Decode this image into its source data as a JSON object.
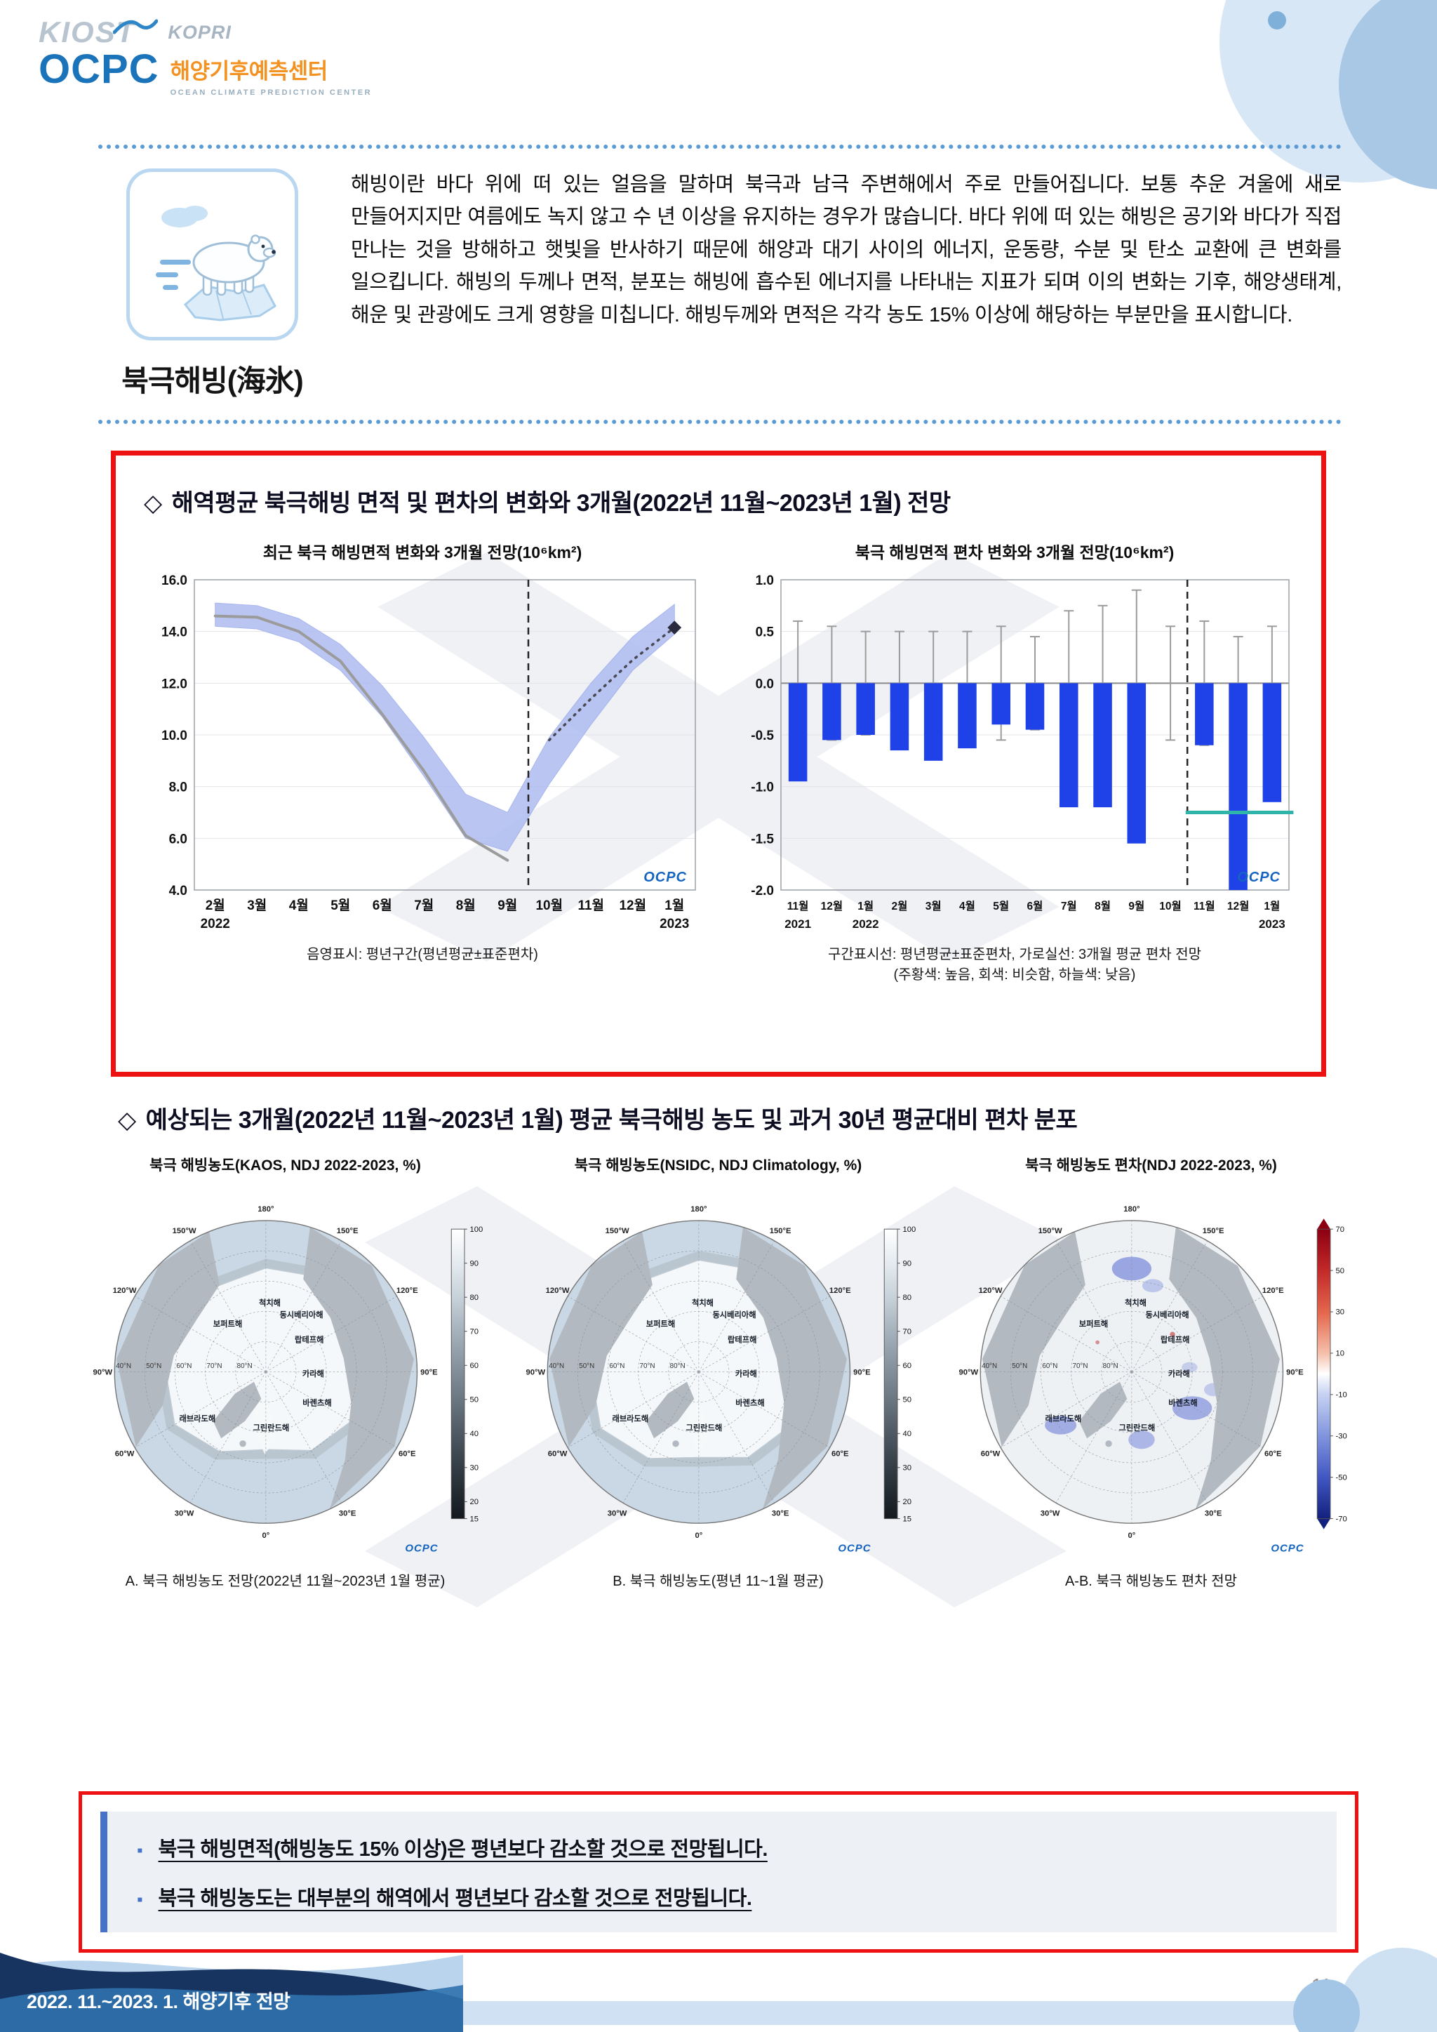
{
  "branding": {
    "kiost": "KIOST",
    "kopri": "KOPRI",
    "ocpc": "OCPC",
    "ocpc_korean": "해양기후예측센터",
    "ocpc_english": "OCEAN CLIMATE PREDICTION CENTER",
    "ocpc_mark": "OCPC"
  },
  "intro": {
    "label": "북극해빙(海氷)",
    "text": "해빙이란 바다 위에 떠 있는 얼음을 말하며 북극과 남극 주변해에서 주로 만들어집니다. 보통 추운 겨울에 새로 만들어지지만 여름에도 녹지 않고 수 년 이상을 유지하는 경우가 많습니다. 바다 위에 떠 있는 해빙은 공기와 바다가 직접 만나는 것을 방해하고 햇빛을 반사하기 때문에 해양과 대기 사이의 에너지, 운동량, 수분 및 탄소 교환에 큰 변화를 일으킵니다. 해빙의 두께나 면적, 분포는 해빙에 흡수된 에너지를 나타내는 지표가 되며 이의 변화는 기후, 해양생태계, 해운 및 관광에도 크게 영향을 미칩니다. 해빙두께와 면적은 각각 농도 15% 이상에 해당하는 부분만을 표시합니다."
  },
  "section1": {
    "diamond": "◇",
    "title": "해역평균 북극해빙 면적 및 편차의 변화와 3개월(2022년 11월~2023년 1월) 전망",
    "caption_left": "음영표시: 평년구간(평년평균±표준편차)",
    "caption_right_1": "구간표시선: 평년평균±표준편차, 가로실선: 3개월 평균 편차 전망",
    "caption_right_2": "(주황색: 높음, 회색: 비슷함, 하늘색: 낮음)"
  },
  "section2": {
    "diamond": "◇",
    "title": "예상되는 3개월(2022년 11월~2023년 1월) 평균 북극해빙 농도 및 과거 30년 평균대비 편차 분포"
  },
  "chart_data": [
    {
      "type": "line",
      "title": "최근 북극 해빙면적 변화와 3개월 전망(10⁶km²)",
      "categories": [
        "2월",
        "3월",
        "4월",
        "5월",
        "6월",
        "7월",
        "8월",
        "9월",
        "10월",
        "11월",
        "12월",
        "1월"
      ],
      "x_year_labels": [
        {
          "index": 0,
          "label": "2022"
        },
        {
          "index": 11,
          "label": "2023"
        }
      ],
      "ylim": [
        4.0,
        16.0
      ],
      "yticks": [
        16.0,
        14.0,
        12.0,
        10.0,
        8.0,
        6.0,
        4.0
      ],
      "series": [
        {
          "name": "관측 해빙면적",
          "style": "solid-gray",
          "values": [
            14.6,
            14.55,
            14.0,
            12.85,
            10.8,
            8.6,
            6.1,
            5.15,
            null,
            null,
            null,
            null
          ]
        },
        {
          "name": "3개월 전망",
          "style": "dotted",
          "values": [
            null,
            null,
            null,
            null,
            null,
            null,
            null,
            null,
            9.8,
            11.4,
            12.9,
            14.15
          ]
        },
        {
          "name": "평년구간 상한",
          "style": "band-upper",
          "values": [
            15.1,
            15.0,
            14.5,
            13.5,
            11.9,
            9.9,
            7.7,
            7.0,
            9.9,
            12.0,
            13.8,
            15.05
          ]
        },
        {
          "name": "평년구간 하한",
          "style": "band-lower",
          "values": [
            14.2,
            14.1,
            13.6,
            12.5,
            10.7,
            8.4,
            6.0,
            5.5,
            8.1,
            10.4,
            12.5,
            13.9
          ]
        }
      ],
      "forecast_divider_after": "9월"
    },
    {
      "type": "bar",
      "title": "북극 해빙면적 편차 변화와 3개월 전망(10⁶km²)",
      "categories": [
        "11월",
        "12월",
        "1월",
        "2월",
        "3월",
        "4월",
        "5월",
        "6월",
        "7월",
        "8월",
        "9월",
        "10월",
        "11월",
        "12월",
        "1월"
      ],
      "x_year_labels": [
        {
          "index": 0,
          "label": "2021"
        },
        {
          "index": 2,
          "label": "2022"
        },
        {
          "index": 14,
          "label": "2023"
        }
      ],
      "ylim": [
        -2.0,
        1.0
      ],
      "yticks": [
        1.0,
        0.5,
        0.0,
        -0.5,
        -1.0,
        -1.5,
        -2.0
      ],
      "values": [
        -0.95,
        -0.55,
        -0.5,
        -0.65,
        -0.75,
        -0.63,
        -0.4,
        -0.45,
        -1.2,
        -1.2,
        -1.55,
        null,
        -0.6,
        -2.0,
        -1.15
      ],
      "std_whiskers": [
        0.6,
        0.55,
        0.5,
        0.5,
        0.5,
        0.5,
        0.55,
        0.45,
        0.7,
        0.75,
        0.9,
        0.55,
        0.6,
        0.45,
        0.55
      ],
      "forecast_divider_after": "10월",
      "forecast_mean_line": {
        "value": -1.25,
        "meaning": "하늘색: 낮음",
        "from_index": 12,
        "to_index": 14
      }
    }
  ],
  "maps": {
    "sea_labels": [
      "척치해",
      "동시베리아해",
      "보퍼트해",
      "랍테프해",
      "카라해",
      "바렌츠해",
      "그린란드해",
      "래브라도해"
    ],
    "lon_labels": [
      "180°",
      "150°W",
      "150°E",
      "120°W",
      "120°E",
      "90°W",
      "90°E",
      "60°W",
      "60°E",
      "30°W",
      "30°E",
      "0°"
    ],
    "lat_labels": [
      "40°N",
      "50°N",
      "60°N",
      "70°N",
      "80°N"
    ],
    "panels": [
      {
        "title": "북극 해빙농도(KAOS, NDJ 2022-2023, %)",
        "caption": "A. 북극 해빙농도 전망(2022년 11월~2023년 1월 평균)",
        "colorbar": "concentration"
      },
      {
        "title": "북극 해빙농도(NSIDC, NDJ Climatology, %)",
        "caption": "B. 북극 해빙농도(평년 11~1월 평균)",
        "colorbar": "concentration"
      },
      {
        "title": "북극 해빙농도 편차(NDJ 2022-2023, %)",
        "caption": "A-B. 북극 해빙농도 편차 전망",
        "colorbar": "anomaly"
      }
    ],
    "colorbars": {
      "concentration": {
        "min": 15,
        "max": 100,
        "ticks": [
          100,
          90,
          80,
          70,
          60,
          50,
          40,
          30,
          20,
          15
        ]
      },
      "anomaly": {
        "min": -70,
        "max": 70,
        "ticks": [
          70,
          50,
          30,
          10,
          -10,
          -30,
          -50,
          -70
        ]
      }
    }
  },
  "summary": {
    "bullets": [
      "북극 해빙면적(해빙농도 15% 이상)은 평년보다 감소할 것으로 전망됩니다.",
      "북극 해빙농도는 대부분의 해역에서 평년보다 감소할 것으로 전망됩니다."
    ]
  },
  "footer": {
    "left": "2022. 11.~2023. 1. 해양기후 전망",
    "page": "11"
  }
}
